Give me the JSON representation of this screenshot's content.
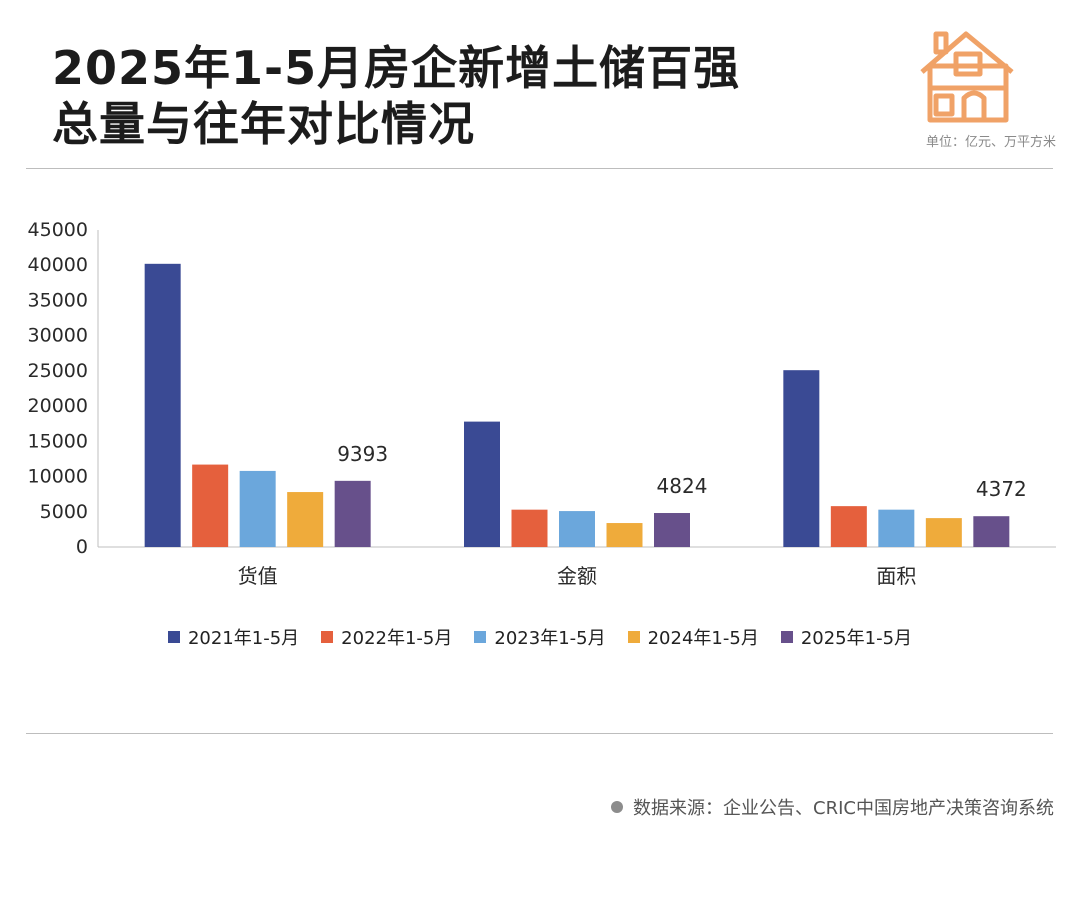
{
  "header": {
    "title_line1": "2025年1-5月房企新增土储百强",
    "title_line2": "总量与往年对比情况",
    "unit": "单位：亿元、万平方米",
    "logo_icon": "house-icon",
    "logo_color": "#F0A267"
  },
  "footer": {
    "source": "数据来源：企业公告、CRIC中国房地产决策咨询系统"
  },
  "chart_data": {
    "type": "bar",
    "title": "",
    "xlabel": "",
    "ylabel": "",
    "categories": [
      "货值",
      "金额",
      "面积"
    ],
    "ylim": [
      0,
      45000
    ],
    "yticks": [
      0,
      5000,
      10000,
      15000,
      20000,
      25000,
      30000,
      35000,
      40000,
      45000
    ],
    "grid": false,
    "legend_position": "bottom",
    "series": [
      {
        "name": "2021年1-5月",
        "color": "#3A4A94",
        "values": [
          40200,
          17800,
          25100
        ]
      },
      {
        "name": "2022年1-5月",
        "color": "#E5603D",
        "values": [
          11700,
          5300,
          5800
        ]
      },
      {
        "name": "2023年1-5月",
        "color": "#6BA7DC",
        "values": [
          10800,
          5100,
          5300
        ]
      },
      {
        "name": "2024年1-5月",
        "color": "#EFAB3B",
        "values": [
          7800,
          3400,
          4100
        ]
      },
      {
        "name": "2025年1-5月",
        "color": "#67508B",
        "values": [
          9393,
          4824,
          4372
        ]
      }
    ],
    "data_labels": [
      {
        "series": 4,
        "category": 0,
        "text": "9393"
      },
      {
        "series": 4,
        "category": 1,
        "text": "4824"
      },
      {
        "series": 4,
        "category": 2,
        "text": "4372"
      }
    ]
  }
}
